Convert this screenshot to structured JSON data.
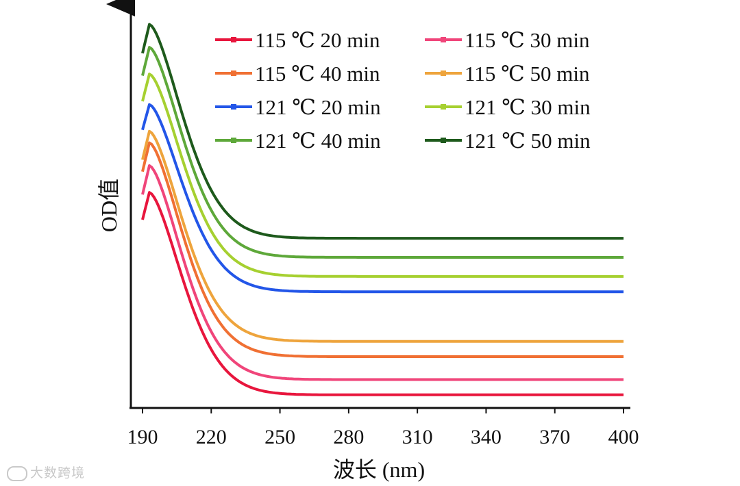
{
  "chart_data": {
    "type": "line",
    "title": "",
    "xlabel": "波长 (nm)",
    "ylabel": "OD值",
    "xlim": [
      190,
      400
    ],
    "ylim": [
      0,
      100
    ],
    "x_ticks": [
      190,
      220,
      250,
      280,
      310,
      340,
      370,
      400
    ],
    "y_ticks": [],
    "legend_position": "top-right",
    "series": [
      {
        "name": "115 ℃ 20 min",
        "color": "#e8163d",
        "peak": 55,
        "plateau": 2
      },
      {
        "name": "115 ℃ 30 min",
        "color": "#f0457a",
        "peak": 62,
        "plateau": 6
      },
      {
        "name": "115 ℃ 40 min",
        "color": "#f07033",
        "peak": 68,
        "plateau": 12
      },
      {
        "name": "115 ℃ 50 min",
        "color": "#eea43c",
        "peak": 71,
        "plateau": 16
      },
      {
        "name": "121 ℃ 20 min",
        "color": "#2356e8",
        "peak": 78,
        "plateau": 29
      },
      {
        "name": "121 ℃ 30 min",
        "color": "#a6d030",
        "peak": 86,
        "plateau": 33
      },
      {
        "name": "121 ℃ 40 min",
        "color": "#5ea83a",
        "peak": 93,
        "plateau": 38
      },
      {
        "name": "121 ℃ 50 min",
        "color": "#1e5a1c",
        "peak": 99,
        "plateau": 43
      }
    ]
  },
  "watermark": {
    "text": "大数跨境"
  }
}
